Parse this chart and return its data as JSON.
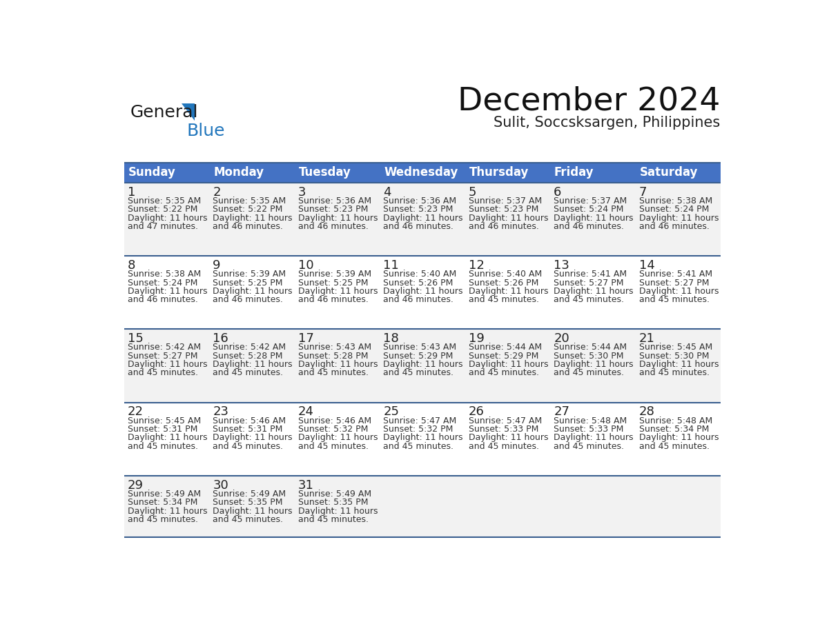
{
  "title": "December 2024",
  "subtitle": "Sulit, Soccsksargen, Philippines",
  "days_of_week": [
    "Sunday",
    "Monday",
    "Tuesday",
    "Wednesday",
    "Thursday",
    "Friday",
    "Saturday"
  ],
  "header_bg": "#4472C4",
  "header_text_color": "#FFFFFF",
  "cell_bg_odd": "#F2F2F2",
  "cell_bg_even": "#FFFFFF",
  "border_color": "#3A5F8F",
  "day_number_color": "#222222",
  "cell_text_color": "#333333",
  "calendar_data": [
    [
      {
        "day": 1,
        "sunrise": "5:35 AM",
        "sunset": "5:22 PM",
        "daylight": "11 hours and 47 minutes."
      },
      {
        "day": 2,
        "sunrise": "5:35 AM",
        "sunset": "5:22 PM",
        "daylight": "11 hours and 46 minutes."
      },
      {
        "day": 3,
        "sunrise": "5:36 AM",
        "sunset": "5:23 PM",
        "daylight": "11 hours and 46 minutes."
      },
      {
        "day": 4,
        "sunrise": "5:36 AM",
        "sunset": "5:23 PM",
        "daylight": "11 hours and 46 minutes."
      },
      {
        "day": 5,
        "sunrise": "5:37 AM",
        "sunset": "5:23 PM",
        "daylight": "11 hours and 46 minutes."
      },
      {
        "day": 6,
        "sunrise": "5:37 AM",
        "sunset": "5:24 PM",
        "daylight": "11 hours and 46 minutes."
      },
      {
        "day": 7,
        "sunrise": "5:38 AM",
        "sunset": "5:24 PM",
        "daylight": "11 hours and 46 minutes."
      }
    ],
    [
      {
        "day": 8,
        "sunrise": "5:38 AM",
        "sunset": "5:24 PM",
        "daylight": "11 hours and 46 minutes."
      },
      {
        "day": 9,
        "sunrise": "5:39 AM",
        "sunset": "5:25 PM",
        "daylight": "11 hours and 46 minutes."
      },
      {
        "day": 10,
        "sunrise": "5:39 AM",
        "sunset": "5:25 PM",
        "daylight": "11 hours and 46 minutes."
      },
      {
        "day": 11,
        "sunrise": "5:40 AM",
        "sunset": "5:26 PM",
        "daylight": "11 hours and 46 minutes."
      },
      {
        "day": 12,
        "sunrise": "5:40 AM",
        "sunset": "5:26 PM",
        "daylight": "11 hours and 45 minutes."
      },
      {
        "day": 13,
        "sunrise": "5:41 AM",
        "sunset": "5:27 PM",
        "daylight": "11 hours and 45 minutes."
      },
      {
        "day": 14,
        "sunrise": "5:41 AM",
        "sunset": "5:27 PM",
        "daylight": "11 hours and 45 minutes."
      }
    ],
    [
      {
        "day": 15,
        "sunrise": "5:42 AM",
        "sunset": "5:27 PM",
        "daylight": "11 hours and 45 minutes."
      },
      {
        "day": 16,
        "sunrise": "5:42 AM",
        "sunset": "5:28 PM",
        "daylight": "11 hours and 45 minutes."
      },
      {
        "day": 17,
        "sunrise": "5:43 AM",
        "sunset": "5:28 PM",
        "daylight": "11 hours and 45 minutes."
      },
      {
        "day": 18,
        "sunrise": "5:43 AM",
        "sunset": "5:29 PM",
        "daylight": "11 hours and 45 minutes."
      },
      {
        "day": 19,
        "sunrise": "5:44 AM",
        "sunset": "5:29 PM",
        "daylight": "11 hours and 45 minutes."
      },
      {
        "day": 20,
        "sunrise": "5:44 AM",
        "sunset": "5:30 PM",
        "daylight": "11 hours and 45 minutes."
      },
      {
        "day": 21,
        "sunrise": "5:45 AM",
        "sunset": "5:30 PM",
        "daylight": "11 hours and 45 minutes."
      }
    ],
    [
      {
        "day": 22,
        "sunrise": "5:45 AM",
        "sunset": "5:31 PM",
        "daylight": "11 hours and 45 minutes."
      },
      {
        "day": 23,
        "sunrise": "5:46 AM",
        "sunset": "5:31 PM",
        "daylight": "11 hours and 45 minutes."
      },
      {
        "day": 24,
        "sunrise": "5:46 AM",
        "sunset": "5:32 PM",
        "daylight": "11 hours and 45 minutes."
      },
      {
        "day": 25,
        "sunrise": "5:47 AM",
        "sunset": "5:32 PM",
        "daylight": "11 hours and 45 minutes."
      },
      {
        "day": 26,
        "sunrise": "5:47 AM",
        "sunset": "5:33 PM",
        "daylight": "11 hours and 45 minutes."
      },
      {
        "day": 27,
        "sunrise": "5:48 AM",
        "sunset": "5:33 PM",
        "daylight": "11 hours and 45 minutes."
      },
      {
        "day": 28,
        "sunrise": "5:48 AM",
        "sunset": "5:34 PM",
        "daylight": "11 hours and 45 minutes."
      }
    ],
    [
      {
        "day": 29,
        "sunrise": "5:49 AM",
        "sunset": "5:34 PM",
        "daylight": "11 hours and 45 minutes."
      },
      {
        "day": 30,
        "sunrise": "5:49 AM",
        "sunset": "5:35 PM",
        "daylight": "11 hours and 45 minutes."
      },
      {
        "day": 31,
        "sunrise": "5:49 AM",
        "sunset": "5:35 PM",
        "daylight": "11 hours and 45 minutes."
      },
      null,
      null,
      null,
      null
    ]
  ],
  "logo_general_color": "#1a1a1a",
  "logo_blue_color": "#2176BC",
  "logo_triangle_color": "#2176BC"
}
